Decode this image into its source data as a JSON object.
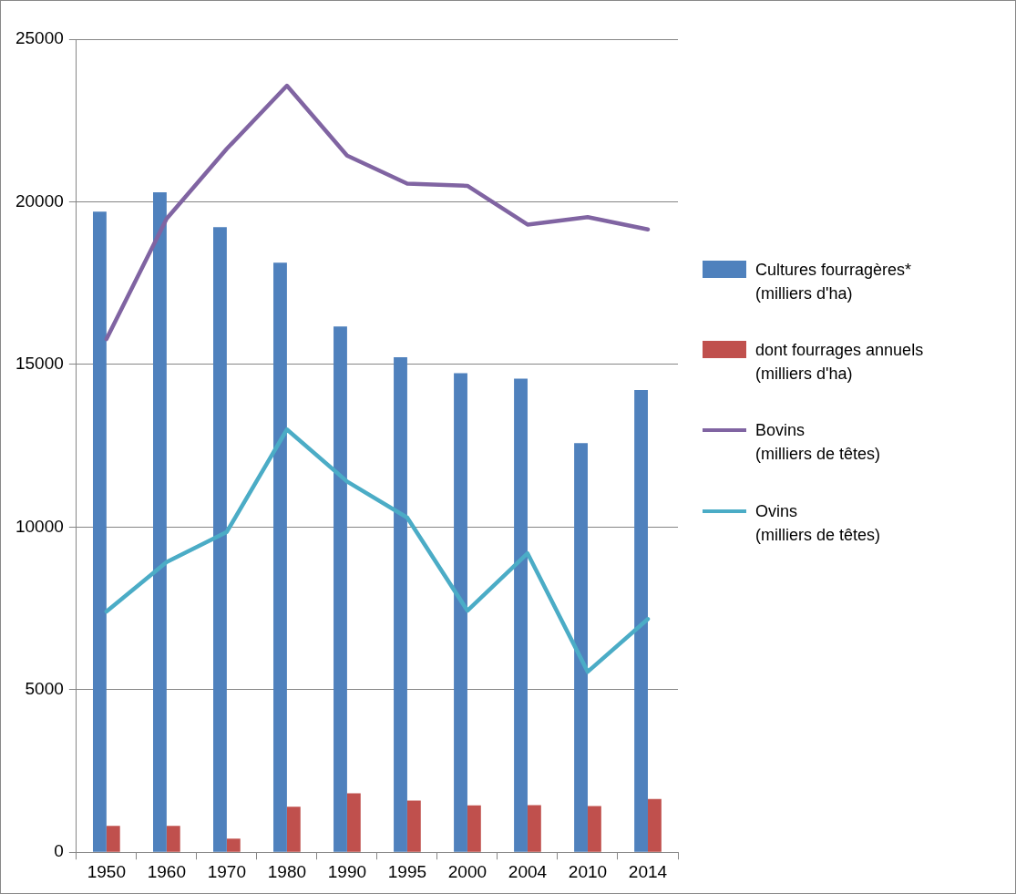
{
  "chart_data": {
    "type": "bar",
    "categories": [
      "1950",
      "1960",
      "1970",
      "1980",
      "1990",
      "1995",
      "2000",
      "2004",
      "2010",
      "2014"
    ],
    "series": [
      {
        "name": "Cultures fourragères*\n(milliers d'ha)",
        "color": "#4f81bd",
        "values": [
          19700,
          20290,
          19220,
          18130,
          16170,
          15220,
          14730,
          14560,
          12580,
          14210
        ]
      },
      {
        "name": "dont fourrages annuels\n(milliers d'ha)",
        "color": "#c0504d",
        "values": [
          810,
          810,
          420,
          1400,
          1810,
          1590,
          1440,
          1450,
          1420,
          1640
        ]
      },
      {
        "name": "Bovins\n(milliers de têtes)",
        "type": "line",
        "color": "#8064a2",
        "values": [
          15780,
          19480,
          21630,
          23570,
          21420,
          20560,
          20490,
          19300,
          19530,
          19150
        ]
      },
      {
        "name": "Ovins\n(milliers de têtes)",
        "type": "line",
        "color": "#4bacc6",
        "values": [
          7400,
          8920,
          9850,
          13000,
          11400,
          10290,
          7430,
          9190,
          5550,
          7170
        ]
      }
    ],
    "ylim": [
      0,
      25000
    ],
    "yticks": [
      0,
      5000,
      10000,
      15000,
      20000,
      25000
    ],
    "grid": "y",
    "legend": "right",
    "marker": "none"
  }
}
